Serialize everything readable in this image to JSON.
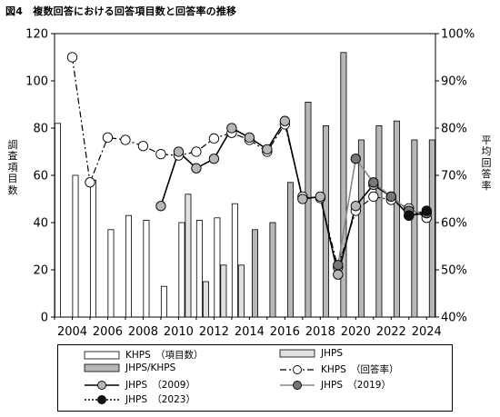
{
  "title": "図4　複数回答における回答項目数と回答率の推移",
  "chart_data": {
    "type": "bar",
    "left_axis_label": "調査項目数",
    "right_axis_label": "平均回答率",
    "left_ylim": [
      0,
      120
    ],
    "left_ticks": [
      0,
      20,
      40,
      60,
      80,
      100,
      120
    ],
    "right_ylim": [
      40,
      100
    ],
    "right_tick_labels": [
      "40%",
      "50%",
      "60%",
      "70%",
      "80%",
      "90%",
      "100%"
    ],
    "x_tick_labels": [
      "2004",
      "2006",
      "2008",
      "2010",
      "2012",
      "2014",
      "2016",
      "2018",
      "2020",
      "2022",
      "2024"
    ],
    "bar_series": [
      {
        "name": "KHPS　（項目数）",
        "style": "white",
        "values": {
          "2003": 82,
          "2004": 60,
          "2005": 58,
          "2006": 37,
          "2007": 43,
          "2008": 41,
          "2009": 13,
          "2010": 40,
          "2011": 41,
          "2012": 42,
          "2013": 48
        }
      },
      {
        "name": "JHPS",
        "style": "lightgray",
        "values": {
          "2010": 52,
          "2011": 15,
          "2012": 22,
          "2013": 22
        }
      },
      {
        "name": "JHPS/KHPS",
        "style": "gray",
        "values": {
          "2014": 37,
          "2015": 40,
          "2016": 57,
          "2017": 91,
          "2018": 81,
          "2019": 112,
          "2020": 75,
          "2021": 81,
          "2022": 83,
          "2023": 75,
          "2024": 75
        }
      }
    ],
    "line_series": [
      {
        "name": "KHPS　（回答率）",
        "style": "dashdot-open",
        "points": [
          [
            2004,
            95
          ],
          [
            2005,
            68.5
          ],
          [
            2006,
            78
          ],
          [
            2007,
            77.5
          ],
          [
            2008,
            76.2
          ],
          [
            2009,
            74.5
          ],
          [
            2010,
            74.2
          ],
          [
            2011,
            75
          ],
          [
            2012,
            77.8
          ],
          [
            2013,
            79
          ],
          [
            2014,
            77.5
          ],
          [
            2015,
            75
          ],
          [
            2016,
            80.8
          ],
          [
            2017,
            65.5
          ],
          [
            2018,
            65.2
          ],
          [
            2019,
            50.5
          ],
          [
            2020,
            62.5
          ],
          [
            2021,
            65.5
          ],
          [
            2022,
            64.8
          ],
          [
            2023,
            63
          ],
          [
            2024,
            61
          ]
        ]
      },
      {
        "name": "JHPS　（2009）",
        "style": "solid-black",
        "points": [
          [
            2009,
            63.5
          ],
          [
            2010,
            75
          ],
          [
            2011,
            71.5
          ],
          [
            2012,
            73.5
          ],
          [
            2013,
            80
          ],
          [
            2014,
            78
          ],
          [
            2015,
            75.5
          ],
          [
            2016,
            81.5
          ],
          [
            2017,
            65
          ],
          [
            2018,
            65.5
          ],
          [
            2019,
            49
          ],
          [
            2020,
            63.5
          ],
          [
            2021,
            68
          ],
          [
            2022,
            65.5
          ],
          [
            2023,
            61.5
          ],
          [
            2024,
            62
          ]
        ]
      },
      {
        "name": "JHPS　（2019）",
        "style": "solid-gray",
        "points": [
          [
            2019,
            51
          ],
          [
            2020,
            73.5
          ],
          [
            2021,
            68.5
          ],
          [
            2022,
            65.5
          ],
          [
            2023,
            62.5
          ],
          [
            2024,
            62
          ]
        ]
      },
      {
        "name": "JHPS　（2023）",
        "style": "dotted-black",
        "points": [
          [
            2023,
            61.5
          ],
          [
            2024,
            62.5
          ]
        ]
      }
    ]
  }
}
